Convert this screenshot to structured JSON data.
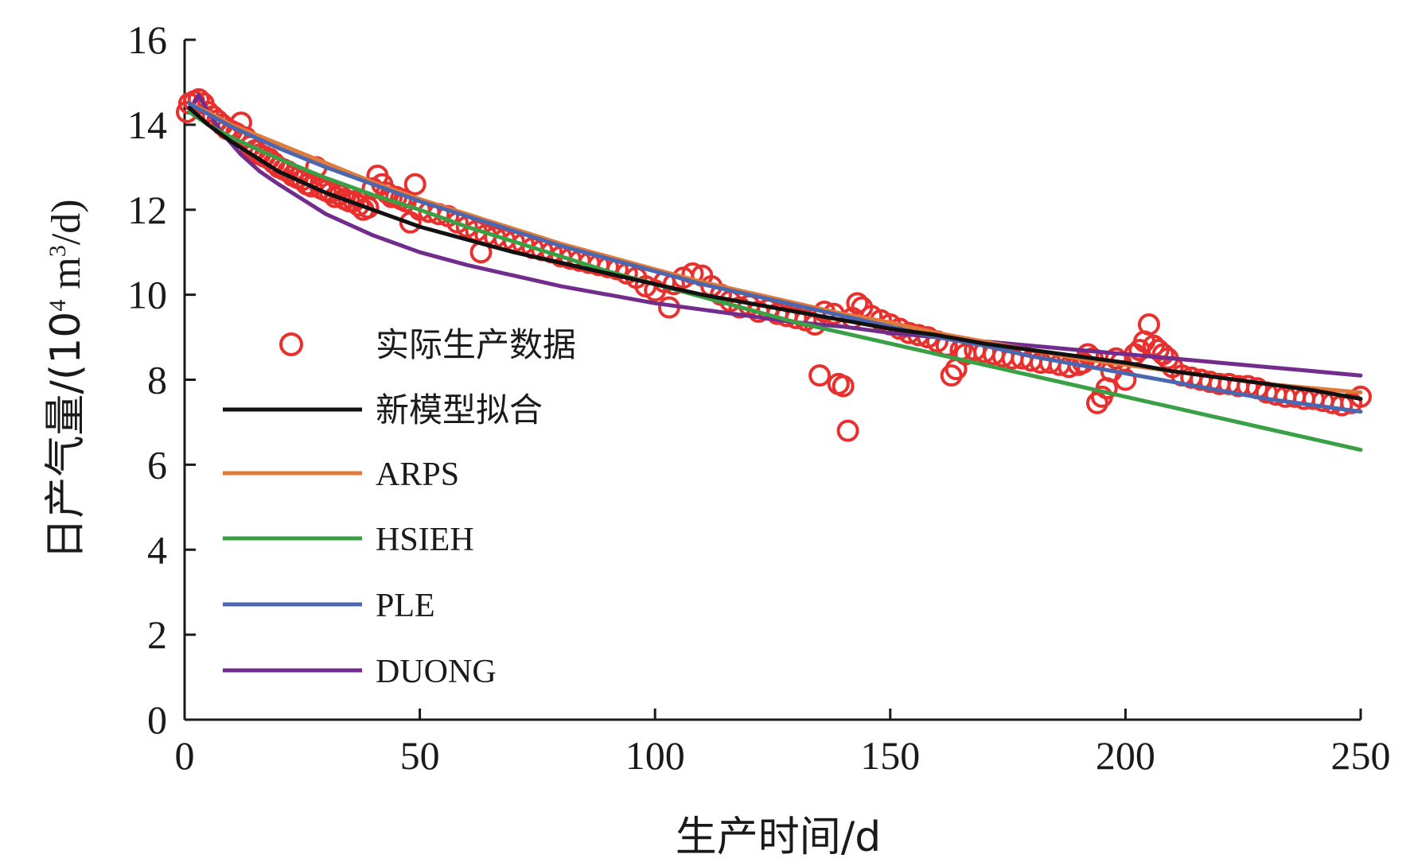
{
  "chart_data": {
    "type": "line",
    "xlabel": "生产时间/d",
    "ylabel": {
      "prefix": "日产气量/(10",
      "sup1": "4",
      "mid": " m",
      "sup2": "3",
      "suffix": "/d)"
    },
    "xlim": [
      0,
      250
    ],
    "ylim": [
      0,
      16
    ],
    "xticks": [
      0,
      50,
      100,
      150,
      200,
      250
    ],
    "yticks": [
      0,
      2,
      4,
      6,
      8,
      10,
      12,
      14,
      16
    ],
    "grid": false,
    "legend_position": "left",
    "scatter": {
      "name": "实际生产数据",
      "color": "#e8312f",
      "points": [
        [
          0.5,
          14.3
        ],
        [
          1,
          14.5
        ],
        [
          2,
          14.55
        ],
        [
          3,
          14.6
        ],
        [
          4,
          14.5
        ],
        [
          5,
          14.3
        ],
        [
          6,
          14.2
        ],
        [
          7,
          14.1
        ],
        [
          8,
          14.0
        ],
        [
          9,
          13.9
        ],
        [
          10,
          13.85
        ],
        [
          11,
          13.8
        ],
        [
          12,
          14.05
        ],
        [
          13,
          13.7
        ],
        [
          14,
          13.5
        ],
        [
          15,
          13.4
        ],
        [
          16,
          13.3
        ],
        [
          17,
          13.25
        ],
        [
          18,
          13.2
        ],
        [
          19,
          13.1
        ],
        [
          20,
          13.0
        ],
        [
          21,
          12.95
        ],
        [
          22,
          12.9
        ],
        [
          23,
          12.8
        ],
        [
          24,
          12.75
        ],
        [
          25,
          12.7
        ],
        [
          26,
          12.6
        ],
        [
          27,
          12.55
        ],
        [
          28,
          13.0
        ],
        [
          29,
          12.5
        ],
        [
          30,
          12.45
        ],
        [
          31,
          12.4
        ],
        [
          32,
          12.3
        ],
        [
          33,
          12.35
        ],
        [
          34,
          12.25
        ],
        [
          35,
          12.2
        ],
        [
          36,
          12.2
        ],
        [
          37,
          12.1
        ],
        [
          38,
          12.0
        ],
        [
          39,
          12.05
        ],
        [
          40,
          12.5
        ],
        [
          41,
          12.8
        ],
        [
          42,
          12.6
        ],
        [
          43,
          12.4
        ],
        [
          44,
          12.3
        ],
        [
          45,
          12.3
        ],
        [
          46,
          12.25
        ],
        [
          47,
          12.2
        ],
        [
          48,
          11.7
        ],
        [
          49,
          12.6
        ],
        [
          50,
          12.0
        ],
        [
          52,
          11.95
        ],
        [
          54,
          11.9
        ],
        [
          56,
          11.85
        ],
        [
          58,
          11.7
        ],
        [
          60,
          11.6
        ],
        [
          62,
          11.5
        ],
        [
          63,
          11.0
        ],
        [
          64,
          11.4
        ],
        [
          66,
          11.35
        ],
        [
          68,
          11.3
        ],
        [
          70,
          11.25
        ],
        [
          72,
          11.2
        ],
        [
          74,
          11.1
        ],
        [
          76,
          11.05
        ],
        [
          78,
          11.0
        ],
        [
          80,
          10.9
        ],
        [
          82,
          10.85
        ],
        [
          84,
          10.8
        ],
        [
          86,
          10.75
        ],
        [
          88,
          10.7
        ],
        [
          90,
          10.65
        ],
        [
          92,
          10.6
        ],
        [
          94,
          10.5
        ],
        [
          96,
          10.4
        ],
        [
          98,
          10.2
        ],
        [
          100,
          10.1
        ],
        [
          102,
          10.3
        ],
        [
          103,
          9.7
        ],
        [
          104,
          10.25
        ],
        [
          106,
          10.4
        ],
        [
          108,
          10.5
        ],
        [
          110,
          10.45
        ],
        [
          112,
          10.2
        ],
        [
          114,
          10.0
        ],
        [
          116,
          9.85
        ],
        [
          118,
          9.7
        ],
        [
          120,
          9.75
        ],
        [
          122,
          9.6
        ],
        [
          124,
          9.65
        ],
        [
          126,
          9.55
        ],
        [
          128,
          9.5
        ],
        [
          130,
          9.45
        ],
        [
          132,
          9.4
        ],
        [
          134,
          9.3
        ],
        [
          135,
          8.1
        ],
        [
          136,
          9.6
        ],
        [
          138,
          9.55
        ],
        [
          139,
          7.9
        ],
        [
          140,
          7.85
        ],
        [
          141,
          6.8
        ],
        [
          142,
          9.45
        ],
        [
          143,
          9.8
        ],
        [
          144,
          9.7
        ],
        [
          146,
          9.5
        ],
        [
          148,
          9.4
        ],
        [
          150,
          9.3
        ],
        [
          152,
          9.2
        ],
        [
          154,
          9.1
        ],
        [
          156,
          9.05
        ],
        [
          158,
          9.0
        ],
        [
          160,
          8.9
        ],
        [
          162,
          8.8
        ],
        [
          163,
          8.1
        ],
        [
          164,
          8.25
        ],
        [
          165,
          8.7
        ],
        [
          166,
          8.6
        ],
        [
          168,
          8.7
        ],
        [
          170,
          8.65
        ],
        [
          172,
          8.6
        ],
        [
          174,
          8.55
        ],
        [
          176,
          8.5
        ],
        [
          178,
          8.5
        ],
        [
          180,
          8.45
        ],
        [
          182,
          8.4
        ],
        [
          184,
          8.4
        ],
        [
          186,
          8.35
        ],
        [
          188,
          8.3
        ],
        [
          190,
          8.35
        ],
        [
          191,
          8.4
        ],
        [
          192,
          8.6
        ],
        [
          193,
          8.5
        ],
        [
          194,
          7.45
        ],
        [
          195,
          7.6
        ],
        [
          196,
          7.8
        ],
        [
          197,
          8.2
        ],
        [
          198,
          8.5
        ],
        [
          199,
          8.4
        ],
        [
          200,
          8.0
        ],
        [
          202,
          8.6
        ],
        [
          203,
          8.7
        ],
        [
          204,
          8.9
        ],
        [
          205,
          9.3
        ],
        [
          206,
          8.8
        ],
        [
          207,
          8.7
        ],
        [
          208,
          8.6
        ],
        [
          209,
          8.5
        ],
        [
          210,
          8.3
        ],
        [
          212,
          8.1
        ],
        [
          214,
          8.05
        ],
        [
          216,
          8.0
        ],
        [
          218,
          7.95
        ],
        [
          220,
          7.9
        ],
        [
          222,
          7.9
        ],
        [
          224,
          7.85
        ],
        [
          226,
          7.85
        ],
        [
          228,
          7.8
        ],
        [
          230,
          7.7
        ],
        [
          232,
          7.65
        ],
        [
          234,
          7.6
        ],
        [
          236,
          7.6
        ],
        [
          238,
          7.55
        ],
        [
          240,
          7.55
        ],
        [
          242,
          7.5
        ],
        [
          244,
          7.45
        ],
        [
          246,
          7.4
        ],
        [
          248,
          7.45
        ],
        [
          250,
          7.6
        ]
      ]
    },
    "series": [
      {
        "name": "新模型拟合",
        "color": "#111111",
        "x": [
          1,
          5,
          10,
          20,
          30,
          40,
          50,
          60,
          70,
          80,
          90,
          100,
          110,
          120,
          130,
          140,
          150,
          160,
          170,
          180,
          190,
          200,
          210,
          220,
          230,
          240,
          250
        ],
        "y": [
          14.4,
          14.0,
          13.6,
          12.9,
          12.4,
          12.0,
          11.6,
          11.3,
          11.0,
          10.75,
          10.5,
          10.25,
          10.0,
          9.8,
          9.6,
          9.4,
          9.2,
          9.05,
          8.85,
          8.7,
          8.55,
          8.4,
          8.2,
          8.05,
          7.9,
          7.75,
          7.55
        ]
      },
      {
        "name": "ARPS",
        "color": "#e07a3a",
        "x": [
          1,
          5,
          10,
          20,
          30,
          40,
          50,
          60,
          70,
          80,
          90,
          100,
          110,
          120,
          130,
          140,
          150,
          160,
          170,
          180,
          190,
          200,
          210,
          220,
          230,
          240,
          250
        ],
        "y": [
          14.5,
          14.3,
          14.0,
          13.55,
          13.1,
          12.65,
          12.25,
          11.9,
          11.55,
          11.2,
          10.9,
          10.6,
          10.3,
          10.05,
          9.8,
          9.55,
          9.35,
          9.1,
          8.9,
          8.7,
          8.5,
          8.35,
          8.2,
          8.05,
          7.9,
          7.8,
          7.7
        ]
      },
      {
        "name": "HSIEH",
        "color": "#3aa046",
        "x": [
          1,
          5,
          10,
          20,
          30,
          40,
          50,
          60,
          70,
          80,
          90,
          100,
          110,
          120,
          130,
          140,
          150,
          160,
          170,
          180,
          190,
          200,
          210,
          220,
          230,
          240,
          250
        ],
        "y": [
          14.3,
          14.0,
          13.7,
          13.2,
          12.75,
          12.35,
          12.0,
          11.6,
          11.25,
          10.9,
          10.55,
          10.25,
          9.95,
          9.65,
          9.35,
          9.1,
          8.85,
          8.6,
          8.35,
          8.1,
          7.85,
          7.6,
          7.35,
          7.1,
          6.85,
          6.6,
          6.35
        ]
      },
      {
        "name": "PLE",
        "color": "#4a67b0",
        "x": [
          1,
          5,
          10,
          20,
          30,
          40,
          50,
          60,
          70,
          80,
          90,
          100,
          110,
          120,
          130,
          140,
          150,
          160,
          170,
          180,
          190,
          200,
          210,
          220,
          230,
          240,
          250
        ],
        "y": [
          14.5,
          14.25,
          13.95,
          13.45,
          13.0,
          12.6,
          12.2,
          11.85,
          11.5,
          11.15,
          10.85,
          10.55,
          10.25,
          10.0,
          9.75,
          9.5,
          9.25,
          9.0,
          8.8,
          8.55,
          8.35,
          8.15,
          7.95,
          7.75,
          7.55,
          7.4,
          7.25
        ]
      },
      {
        "name": "DUONG",
        "color": "#722d8c",
        "x": [
          1,
          3,
          5,
          8,
          12,
          16,
          20,
          30,
          40,
          50,
          60,
          70,
          80,
          90,
          100,
          110,
          120,
          130,
          140,
          150,
          160,
          170,
          180,
          190,
          200,
          210,
          220,
          230,
          240,
          250
        ],
        "y": [
          14.3,
          14.7,
          14.3,
          13.8,
          13.3,
          12.9,
          12.6,
          11.9,
          11.4,
          11.0,
          10.7,
          10.45,
          10.2,
          10.0,
          9.8,
          9.65,
          9.5,
          9.35,
          9.25,
          9.1,
          9.0,
          8.9,
          8.8,
          8.7,
          8.6,
          8.5,
          8.4,
          8.3,
          8.2,
          8.1
        ]
      }
    ]
  }
}
